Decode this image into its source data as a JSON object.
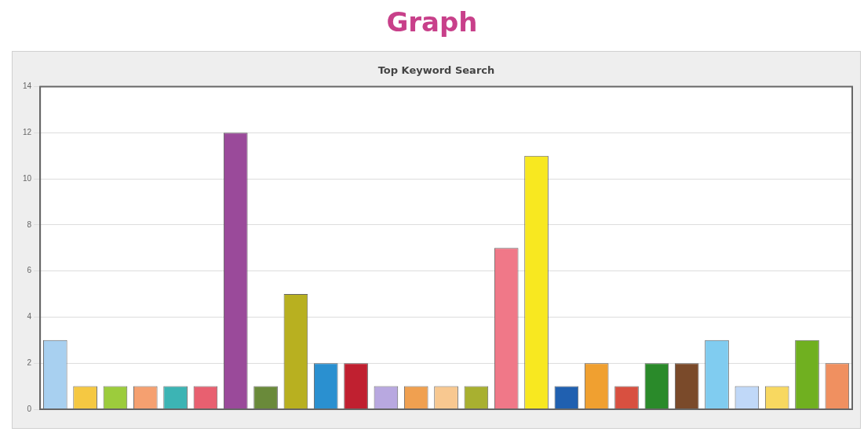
{
  "chart_data": {
    "type": "bar",
    "title": "Graph",
    "subtitle": "Top Keyword Search",
    "categories": [
      null,
      null,
      null,
      null,
      null,
      null,
      null,
      null,
      null,
      null,
      null,
      null,
      null,
      null,
      null,
      null,
      null,
      null,
      null,
      null,
      null,
      null,
      null,
      null,
      null,
      null,
      null
    ],
    "values": [
      3,
      1,
      1,
      1,
      1,
      1,
      12,
      1,
      5,
      2,
      2,
      1,
      1,
      1,
      1,
      7,
      11,
      1,
      2,
      1,
      2,
      2,
      3,
      1,
      1,
      3,
      2
    ],
    "colors": [
      "#a8d0f0",
      "#f5c842",
      "#9ccc3c",
      "#f5a070",
      "#3cb4b4",
      "#e86070",
      "#9a4a9a",
      "#6a8a3a",
      "#b8b020",
      "#2a90d0",
      "#c02030",
      "#b8a8e0",
      "#f0a050",
      "#f8c890",
      "#a8b030",
      "#f07888",
      "#f8e820",
      "#2060b0",
      "#f0a030",
      "#d85040",
      "#2a8a2a",
      "#7a4a2a",
      "#80ccf0",
      "#c0d8f8",
      "#f8d860",
      "#70b020",
      "#f09060"
    ],
    "ylim": [
      0,
      14
    ],
    "yticks": [
      0,
      2,
      4,
      6,
      8,
      10,
      12,
      14
    ],
    "grid": "y"
  }
}
